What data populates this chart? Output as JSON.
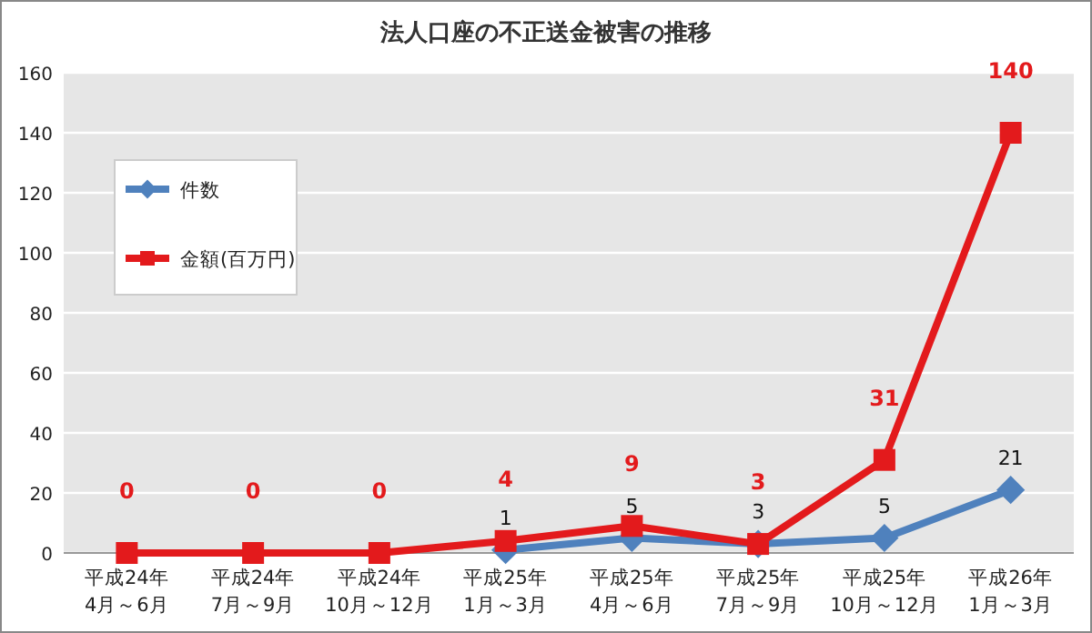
{
  "chart_data": {
    "type": "line",
    "title": "法人口座の不正送金被害の推移",
    "categories": [
      "平成24年\n4月～6月",
      "平成24年\n7月～9月",
      "平成24年\n10月～12月",
      "平成25年\n1月～3月",
      "平成25年\n4月～6月",
      "平成25年\n7月～9月",
      "平成25年\n10月～12月",
      "平成26年\n1月～3月"
    ],
    "series": [
      {
        "name": "件数",
        "color": "#4f81bd",
        "marker": "diamond",
        "values": [
          null,
          null,
          null,
          1,
          5,
          3,
          5,
          21
        ],
        "value_labels": [
          null,
          null,
          null,
          "1",
          "5",
          "3",
          "5",
          "21"
        ]
      },
      {
        "name": "金額(百万円)",
        "color": "#e31a1c",
        "marker": "square",
        "values": [
          0,
          0,
          0,
          4,
          9,
          3,
          31,
          140
        ],
        "value_labels": [
          "0",
          "0",
          "0",
          "4",
          "9",
          "3",
          "31",
          "140"
        ]
      }
    ],
    "ylim": [
      0,
      160
    ],
    "yticks": [
      0,
      20,
      40,
      60,
      80,
      100,
      120,
      140,
      160
    ],
    "grid": "y",
    "legend": "top left"
  }
}
